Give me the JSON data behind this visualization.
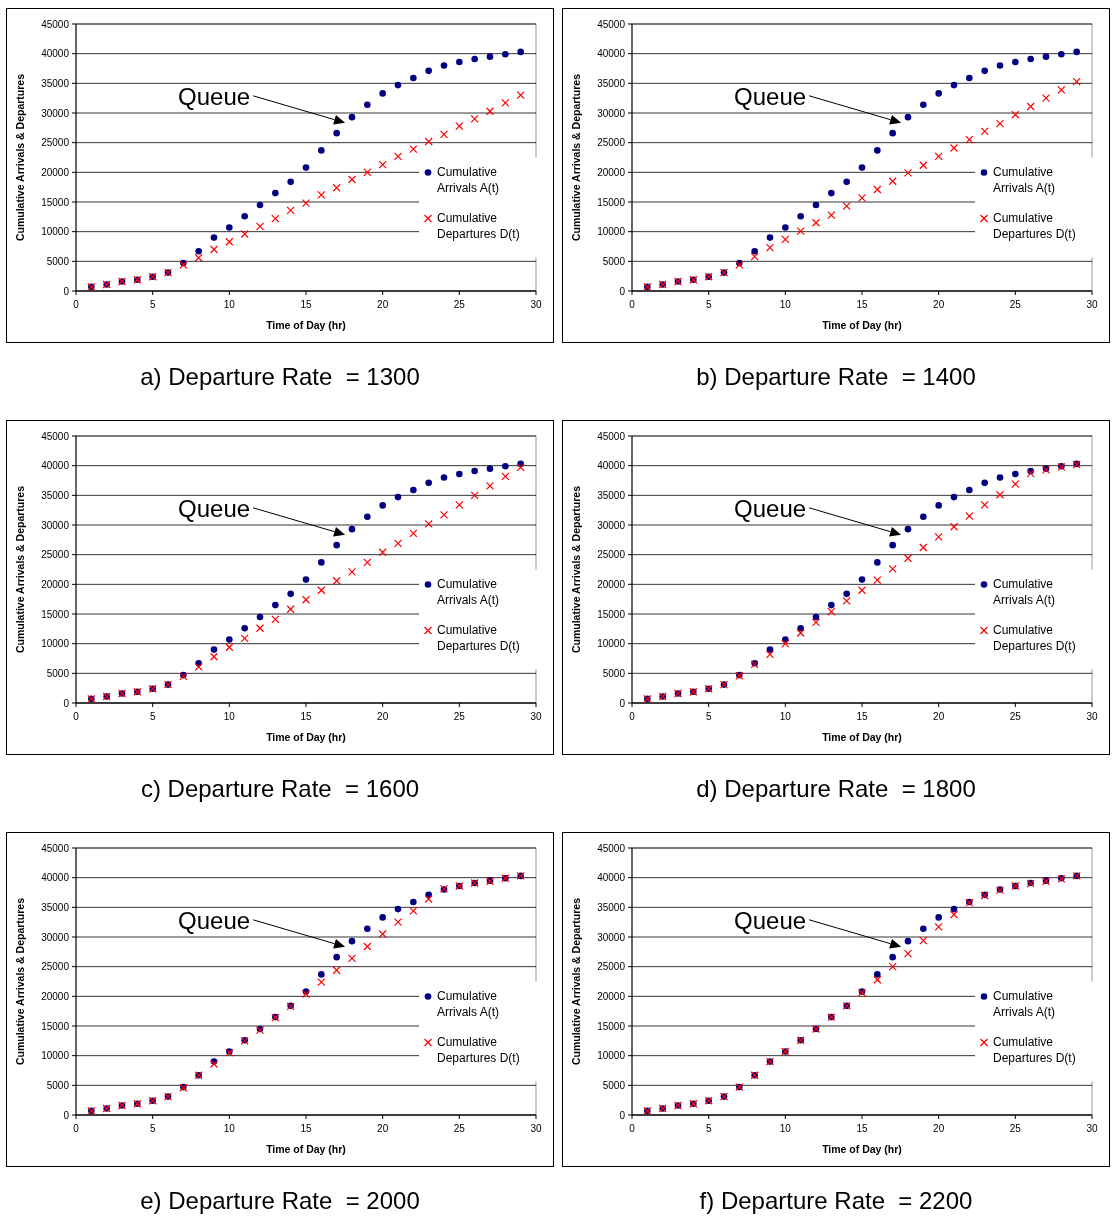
{
  "chart_data": [
    {
      "type": "scatter",
      "title": "a) Departure Rate  = 1300",
      "xlabel": "Time of Day (hr)",
      "ylabel": "Cumulative Arrivals & Departures",
      "x": [
        1,
        2,
        3,
        4,
        5,
        6,
        7,
        8,
        9,
        10,
        11,
        12,
        13,
        14,
        15,
        16,
        17,
        18,
        19,
        20,
        21,
        22,
        23,
        24,
        25,
        26,
        27,
        28,
        29
      ],
      "xlim": [
        0,
        30
      ],
      "xticks": [
        0,
        5,
        10,
        15,
        20,
        25,
        30
      ],
      "ylim": [
        0,
        45000
      ],
      "yticks": [
        0,
        5000,
        10000,
        15000,
        20000,
        25000,
        30000,
        35000,
        40000,
        45000
      ],
      "grid": "y",
      "legend": "right",
      "annotations": [
        "Queue"
      ],
      "series": [
        {
          "name": "Cumulative Arrivals A(t)",
          "color": "#000080",
          "marker": "circle",
          "values": [
            700,
            1100,
            1600,
            1900,
            2400,
            3100,
            4700,
            6700,
            9000,
            10700,
            12600,
            14500,
            16500,
            18400,
            20800,
            23700,
            26600,
            29300,
            31400,
            33300,
            34700,
            35900,
            37100,
            38000,
            38600,
            39100,
            39500,
            39900,
            40300
          ]
        },
        {
          "name": "Cumulative Departures D(t)",
          "color": "#ff0000",
          "marker": "cross",
          "values": [
            700,
            1100,
            1600,
            1900,
            2400,
            3100,
            4400,
            5600,
            7000,
            8300,
            9600,
            10900,
            12200,
            13600,
            14800,
            16200,
            17400,
            18800,
            20000,
            21300,
            22700,
            23900,
            25200,
            26400,
            27800,
            29000,
            30300,
            31700,
            33000
          ]
        }
      ]
    },
    {
      "type": "scatter",
      "title": "b) Departure Rate  = 1400",
      "xlabel": "Time of Day (hr)",
      "ylabel": "Cumulative Arrivals & Departures",
      "x": [
        1,
        2,
        3,
        4,
        5,
        6,
        7,
        8,
        9,
        10,
        11,
        12,
        13,
        14,
        15,
        16,
        17,
        18,
        19,
        20,
        21,
        22,
        23,
        24,
        25,
        26,
        27,
        28,
        29
      ],
      "xlim": [
        0,
        30
      ],
      "xticks": [
        0,
        5,
        10,
        15,
        20,
        25,
        30
      ],
      "ylim": [
        0,
        45000
      ],
      "yticks": [
        0,
        5000,
        10000,
        15000,
        20000,
        25000,
        30000,
        35000,
        40000,
        45000
      ],
      "grid": "y",
      "legend": "right",
      "annotations": [
        "Queue"
      ],
      "series": [
        {
          "name": "Cumulative Arrivals A(t)",
          "color": "#000080",
          "marker": "circle",
          "values": [
            700,
            1100,
            1600,
            1900,
            2400,
            3100,
            4700,
            6700,
            9000,
            10700,
            12600,
            14500,
            16500,
            18400,
            20800,
            23700,
            26600,
            29300,
            31400,
            33300,
            34700,
            35900,
            37100,
            38000,
            38600,
            39100,
            39500,
            39900,
            40300
          ]
        },
        {
          "name": "Cumulative Departures D(t)",
          "color": "#ff0000",
          "marker": "cross",
          "values": [
            700,
            1100,
            1600,
            1900,
            2400,
            3100,
            4400,
            5800,
            7300,
            8700,
            10100,
            11500,
            12800,
            14300,
            15700,
            17100,
            18500,
            19900,
            21200,
            22700,
            24100,
            25500,
            26900,
            28200,
            29700,
            31100,
            32500,
            33900,
            35300
          ]
        }
      ]
    },
    {
      "type": "scatter",
      "title": "c) Departure Rate  = 1600",
      "xlabel": "Time of Day (hr)",
      "ylabel": "Cumulative Arrivals & Departures",
      "x": [
        1,
        2,
        3,
        4,
        5,
        6,
        7,
        8,
        9,
        10,
        11,
        12,
        13,
        14,
        15,
        16,
        17,
        18,
        19,
        20,
        21,
        22,
        23,
        24,
        25,
        26,
        27,
        28,
        29
      ],
      "xlim": [
        0,
        30
      ],
      "xticks": [
        0,
        5,
        10,
        15,
        20,
        25,
        30
      ],
      "ylim": [
        0,
        45000
      ],
      "yticks": [
        0,
        5000,
        10000,
        15000,
        20000,
        25000,
        30000,
        35000,
        40000,
        45000
      ],
      "grid": "y",
      "legend": "right",
      "annotations": [
        "Queue"
      ],
      "series": [
        {
          "name": "Cumulative Arrivals A(t)",
          "color": "#000080",
          "marker": "circle",
          "values": [
            700,
            1100,
            1600,
            1900,
            2400,
            3100,
            4700,
            6700,
            9000,
            10700,
            12600,
            14500,
            16500,
            18400,
            20800,
            23700,
            26600,
            29300,
            31400,
            33300,
            34700,
            35900,
            37100,
            38000,
            38600,
            39100,
            39500,
            39900,
            40300
          ]
        },
        {
          "name": "Cumulative Departures D(t)",
          "color": "#ff0000",
          "marker": "cross",
          "values": [
            700,
            1100,
            1600,
            1900,
            2400,
            3100,
            4500,
            6100,
            7800,
            9400,
            10900,
            12600,
            14100,
            15800,
            17400,
            19000,
            20600,
            22100,
            23700,
            25400,
            26900,
            28600,
            30200,
            31700,
            33400,
            35000,
            36600,
            38200,
            39700
          ]
        }
      ]
    },
    {
      "type": "scatter",
      "title": "d) Departure Rate  = 1800",
      "xlabel": "Time of Day (hr)",
      "ylabel": "Cumulative Arrivals & Departures",
      "x": [
        1,
        2,
        3,
        4,
        5,
        6,
        7,
        8,
        9,
        10,
        11,
        12,
        13,
        14,
        15,
        16,
        17,
        18,
        19,
        20,
        21,
        22,
        23,
        24,
        25,
        26,
        27,
        28,
        29
      ],
      "xlim": [
        0,
        30
      ],
      "xticks": [
        0,
        5,
        10,
        15,
        20,
        25,
        30
      ],
      "ylim": [
        0,
        45000
      ],
      "yticks": [
        0,
        5000,
        10000,
        15000,
        20000,
        25000,
        30000,
        35000,
        40000,
        45000
      ],
      "grid": "y",
      "legend": "right",
      "annotations": [
        "Queue"
      ],
      "series": [
        {
          "name": "Cumulative Arrivals A(t)",
          "color": "#000080",
          "marker": "circle",
          "values": [
            700,
            1100,
            1600,
            1900,
            2400,
            3100,
            4700,
            6700,
            9000,
            10700,
            12600,
            14500,
            16500,
            18400,
            20800,
            23700,
            26600,
            29300,
            31400,
            33300,
            34700,
            35900,
            37100,
            38000,
            38600,
            39100,
            39500,
            39900,
            40300
          ]
        },
        {
          "name": "Cumulative Departures D(t)",
          "color": "#ff0000",
          "marker": "cross",
          "values": [
            700,
            1100,
            1600,
            1900,
            2400,
            3100,
            4600,
            6500,
            8200,
            10000,
            11800,
            13600,
            15400,
            17200,
            19000,
            20700,
            22600,
            24400,
            26200,
            28000,
            29700,
            31500,
            33400,
            35100,
            36900,
            38700,
            39300,
            39800,
            40200
          ]
        }
      ]
    },
    {
      "type": "scatter",
      "title": "e) Departure Rate  = 2000",
      "xlabel": "Time of Day (hr)",
      "ylabel": "Cumulative Arrivals & Departures",
      "x": [
        1,
        2,
        3,
        4,
        5,
        6,
        7,
        8,
        9,
        10,
        11,
        12,
        13,
        14,
        15,
        16,
        17,
        18,
        19,
        20,
        21,
        22,
        23,
        24,
        25,
        26,
        27,
        28,
        29
      ],
      "xlim": [
        0,
        30
      ],
      "xticks": [
        0,
        5,
        10,
        15,
        20,
        25,
        30
      ],
      "ylim": [
        0,
        45000
      ],
      "yticks": [
        0,
        5000,
        10000,
        15000,
        20000,
        25000,
        30000,
        35000,
        40000,
        45000
      ],
      "grid": "y",
      "legend": "right",
      "annotations": [
        "Queue"
      ],
      "series": [
        {
          "name": "Cumulative Arrivals A(t)",
          "color": "#000080",
          "marker": "circle",
          "values": [
            700,
            1100,
            1600,
            1900,
            2400,
            3100,
            4700,
            6700,
            9000,
            10700,
            12600,
            14500,
            16500,
            18400,
            20800,
            23700,
            26600,
            29300,
            31400,
            33300,
            34700,
            35900,
            37100,
            38000,
            38600,
            39100,
            39500,
            39900,
            40300
          ]
        },
        {
          "name": "Cumulative Departures D(t)",
          "color": "#ff0000",
          "marker": "cross",
          "values": [
            700,
            1100,
            1600,
            1900,
            2400,
            3100,
            4600,
            6700,
            8600,
            10500,
            12500,
            14300,
            16400,
            18300,
            20400,
            22400,
            24400,
            26400,
            28400,
            30500,
            32500,
            34400,
            36400,
            38100,
            38600,
            39100,
            39400,
            39900,
            40300
          ]
        }
      ]
    },
    {
      "type": "scatter",
      "title": "f) Departure Rate  = 2200",
      "xlabel": "Time of Day (hr)",
      "ylabel": "Cumulative Arrivals & Departures",
      "x": [
        1,
        2,
        3,
        4,
        5,
        6,
        7,
        8,
        9,
        10,
        11,
        12,
        13,
        14,
        15,
        16,
        17,
        18,
        19,
        20,
        21,
        22,
        23,
        24,
        25,
        26,
        27,
        28,
        29
      ],
      "xlim": [
        0,
        30
      ],
      "xticks": [
        0,
        5,
        10,
        15,
        20,
        25,
        30
      ],
      "ylim": [
        0,
        45000
      ],
      "yticks": [
        0,
        5000,
        10000,
        15000,
        20000,
        25000,
        30000,
        35000,
        40000,
        45000
      ],
      "grid": "y",
      "legend": "right",
      "annotations": [
        "Queue"
      ],
      "series": [
        {
          "name": "Cumulative Arrivals A(t)",
          "color": "#000080",
          "marker": "circle",
          "values": [
            700,
            1100,
            1600,
            1900,
            2400,
            3100,
            4700,
            6700,
            9000,
            10700,
            12600,
            14500,
            16500,
            18400,
            20800,
            23700,
            26600,
            29300,
            31400,
            33300,
            34700,
            35900,
            37100,
            38000,
            38600,
            39100,
            39500,
            39900,
            40300
          ]
        },
        {
          "name": "Cumulative Departures D(t)",
          "color": "#ff0000",
          "marker": "cross",
          "values": [
            700,
            1100,
            1600,
            1900,
            2400,
            3100,
            4700,
            6700,
            9000,
            10700,
            12600,
            14500,
            16500,
            18400,
            20600,
            22800,
            25000,
            27200,
            29400,
            31700,
            33800,
            35800,
            37000,
            37900,
            38600,
            39000,
            39400,
            39800,
            40300
          ]
        }
      ]
    }
  ]
}
